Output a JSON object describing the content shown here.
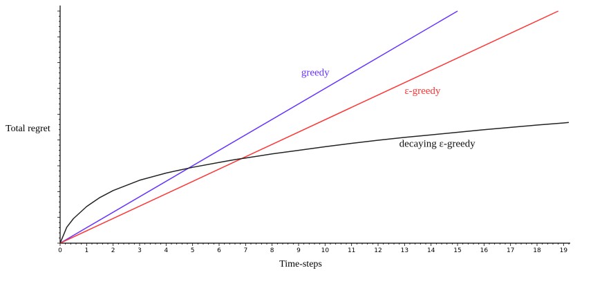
{
  "chart_data": {
    "type": "line",
    "xlabel": "Time-steps",
    "ylabel": "Total regret",
    "xlim": [
      0,
      19.2
    ],
    "ylim": [
      0,
      9
    ],
    "x_ticks": [
      "0",
      "1",
      "2",
      "3",
      "4",
      "5",
      "6",
      "7",
      "8",
      "9",
      "10",
      "11",
      "12",
      "13",
      "14",
      "15",
      "16",
      "17",
      "18",
      "19"
    ],
    "y_ticks_labeled": false,
    "series": [
      {
        "name": "greedy",
        "color": "#6633ff",
        "kind": "linear",
        "points": [
          [
            0,
            0
          ],
          [
            15.0,
            9.0
          ]
        ]
      },
      {
        "name": "ε-greedy",
        "color": "#ff3333",
        "kind": "linear",
        "points": [
          [
            0,
            0
          ],
          [
            18.8,
            9.0
          ]
        ]
      },
      {
        "name": "decaying ε-greedy",
        "color": "#222222",
        "kind": "curve",
        "points": [
          [
            0,
            0
          ],
          [
            0.25,
            0.62
          ],
          [
            0.5,
            0.95
          ],
          [
            1,
            1.42
          ],
          [
            1.5,
            1.77
          ],
          [
            2,
            2.04
          ],
          [
            3,
            2.44
          ],
          [
            4,
            2.72
          ],
          [
            4.4,
            2.81
          ],
          [
            5,
            2.94
          ],
          [
            6,
            3.13
          ],
          [
            6.6,
            3.24
          ],
          [
            7,
            3.3
          ],
          [
            8,
            3.46
          ],
          [
            9,
            3.6
          ],
          [
            10,
            3.74
          ],
          [
            11,
            3.87
          ],
          [
            12,
            3.99
          ],
          [
            13,
            4.1
          ],
          [
            14,
            4.2
          ],
          [
            15,
            4.3
          ],
          [
            16,
            4.4
          ],
          [
            17,
            4.49
          ],
          [
            18,
            4.58
          ],
          [
            19,
            4.66
          ],
          [
            19.2,
            4.68
          ]
        ]
      }
    ],
    "annotations": [
      {
        "text": "greedy",
        "color": "#6633ff",
        "x": 9.1,
        "y": 6.5
      },
      {
        "text": "ε-greedy",
        "color": "#ff3333",
        "x": 13.0,
        "y": 5.78
      },
      {
        "text": "decaying ε-greedy",
        "color": "#111111",
        "x": 12.8,
        "y": 3.74
      }
    ]
  }
}
